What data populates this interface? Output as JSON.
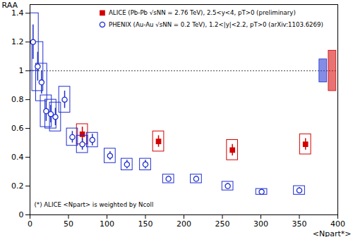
{
  "chart_data": {
    "type": "scatter",
    "x_label": "<Npart*>",
    "y_label": "RAA",
    "xlim": [
      0,
      400
    ],
    "ylim": [
      0,
      1.46
    ],
    "xticks": [
      0,
      50,
      100,
      150,
      200,
      250,
      300,
      350,
      400
    ],
    "yticks": [
      0,
      0.2,
      0.4,
      0.6,
      0.8,
      1,
      1.2,
      1.4
    ],
    "reference_line": 1,
    "annotation": "(*) ALICE <Npart> is weighted by Ncoll",
    "legend": "top-right",
    "series": [
      {
        "name": "ALICE (Pb-Pb √sNN = 2.76 TeV), 2.5<y<4, pT>0 (preliminary)",
        "color": "#d40000",
        "marker": "square",
        "x": [
          68,
          167,
          263,
          358
        ],
        "values": [
          0.56,
          0.51,
          0.45,
          0.49
        ],
        "stat_err": [
          0.05,
          0.04,
          0.04,
          0.04
        ],
        "syst_err": [
          0.07,
          0.07,
          0.07,
          0.07
        ],
        "global_err": 0.14
      },
      {
        "name": "PHENIX (Au-Au √sNN = 0.2 TeV), 1.2<|y|<2.2, pT>0 (arXiv:1103.6269)",
        "color": "#1f2fd0",
        "marker": "open_circle",
        "x": [
          4,
          10,
          15,
          21,
          27,
          33,
          45,
          55,
          68,
          81,
          104,
          126,
          150,
          180,
          216,
          257,
          301,
          350
        ],
        "values": [
          1.2,
          1.03,
          0.92,
          0.72,
          0.7,
          0.68,
          0.8,
          0.54,
          0.49,
          0.52,
          0.41,
          0.35,
          0.35,
          0.25,
          0.25,
          0.2,
          0.16,
          0.17
        ],
        "stat_err": [
          0.12,
          0.1,
          0.08,
          0.07,
          0.06,
          0.06,
          0.06,
          0.04,
          0.04,
          0.04,
          0.03,
          0.03,
          0.03,
          0.02,
          0.02,
          0.02,
          0.02,
          0.02
        ],
        "syst_err": [
          0.2,
          0.17,
          0.13,
          0.11,
          0.1,
          0.1,
          0.09,
          0.06,
          0.06,
          0.05,
          0.05,
          0.04,
          0.04,
          0.03,
          0.03,
          0.03,
          0.02,
          0.03
        ],
        "global_err": 0.08
      }
    ]
  }
}
